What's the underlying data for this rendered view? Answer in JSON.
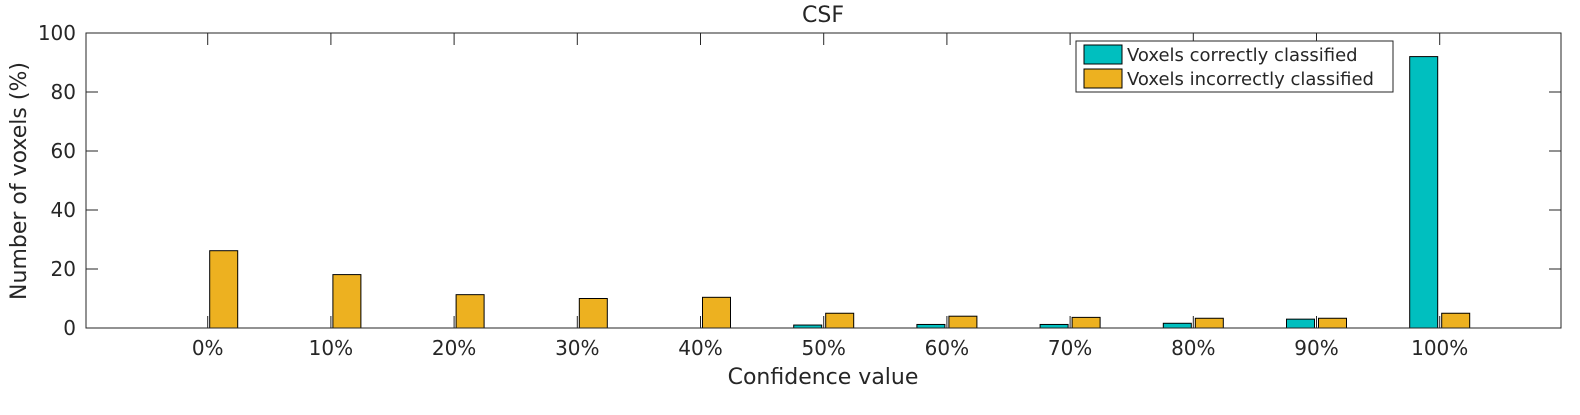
{
  "chart_data": {
    "type": "bar",
    "title": "CSF",
    "xlabel": "Confidence value",
    "ylabel": "Number of voxels (%)",
    "categories": [
      "0%",
      "10%",
      "20%",
      "30%",
      "40%",
      "50%",
      "60%",
      "70%",
      "80%",
      "90%",
      "100%"
    ],
    "ylim": [
      0,
      100
    ],
    "yticks": [
      0,
      20,
      40,
      60,
      80,
      100
    ],
    "grid": false,
    "legend_position": "top-right",
    "series": [
      {
        "name": "Voxels correctly classified",
        "color": "#00BFBF",
        "values": [
          0,
          0,
          0,
          0,
          0,
          1.0,
          1.2,
          1.2,
          1.6,
          3.0,
          92.0
        ]
      },
      {
        "name": "Voxels incorrectly classified",
        "color": "#EDB120",
        "values": [
          26.2,
          18.1,
          11.3,
          10.0,
          10.4,
          5.0,
          4.0,
          3.6,
          3.3,
          3.3,
          5.0
        ]
      }
    ]
  }
}
